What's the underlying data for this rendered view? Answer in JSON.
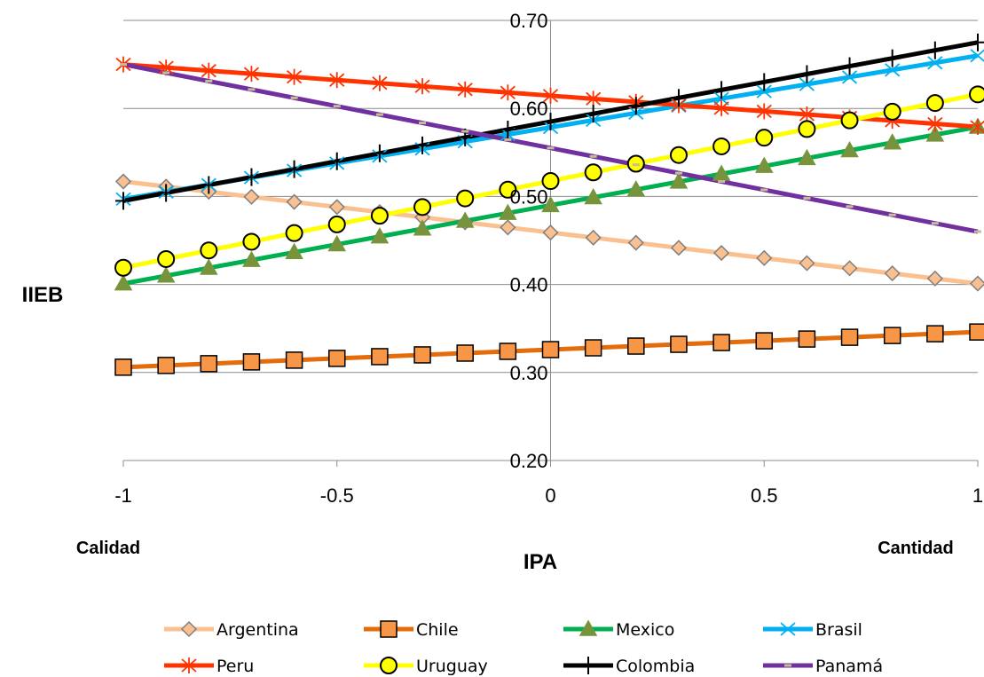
{
  "chart_data": {
    "type": "line",
    "xlabel": "IPA",
    "ylabel": "IIEB",
    "x_left_label": "Calidad",
    "x_right_label": "Cantidad",
    "x": [
      -1,
      -0.9,
      -0.8,
      -0.7,
      -0.6,
      -0.5,
      -0.4,
      -0.3,
      -0.2,
      -0.1,
      0,
      0.1,
      0.2,
      0.3,
      0.4,
      0.5,
      0.6,
      0.7,
      0.8,
      0.9,
      1
    ],
    "xlim": [
      -1,
      1
    ],
    "ylim": [
      0.2,
      0.7
    ],
    "x_ticks": [
      -1,
      -0.5,
      0,
      0.5,
      1
    ],
    "x_tick_labels": [
      "-1",
      "-0.5",
      "0",
      "0.5",
      "1"
    ],
    "y_ticks": [
      0.2,
      0.3,
      0.4,
      0.5,
      0.6,
      0.7
    ],
    "y_tick_labels": [
      "0.20",
      "0.30",
      "0.40",
      "0.50",
      "0.60",
      "0.70"
    ],
    "grid": "horizontal",
    "legend_position": "bottom",
    "series": [
      {
        "name": "Argentina",
        "start": 0.517,
        "end": 0.401,
        "color": "#FAC090",
        "marker": "diamond",
        "marker_fill": "#FAC090",
        "marker_stroke": "#7F7F7F"
      },
      {
        "name": "Chile",
        "start": 0.306,
        "end": 0.346,
        "color": "#E46C0A",
        "marker": "square",
        "marker_fill": "#F79646",
        "marker_stroke": "#000000"
      },
      {
        "name": "Mexico",
        "start": 0.401,
        "end": 0.579,
        "color": "#00B050",
        "marker": "triangle",
        "marker_fill": "#77933C",
        "marker_stroke": "#77933C"
      },
      {
        "name": "Brasil",
        "start": 0.497,
        "end": 0.66,
        "color": "#00B0F0",
        "marker": "x",
        "marker_fill": "none",
        "marker_stroke": "#00B0F0"
      },
      {
        "name": "Peru",
        "start": 0.65,
        "end": 0.579,
        "color": "#FF3300",
        "marker": "asterisk",
        "marker_fill": "none",
        "marker_stroke": "#FF3300"
      },
      {
        "name": "Uruguay",
        "start": 0.419,
        "end": 0.616,
        "color": "#FFFF00",
        "marker": "circle",
        "marker_fill": "#FFFF00",
        "marker_stroke": "#000000"
      },
      {
        "name": "Colombia",
        "start": 0.495,
        "end": 0.675,
        "color": "#000000",
        "marker": "plus",
        "marker_fill": "none",
        "marker_stroke": "#000000"
      },
      {
        "name": "Panamá",
        "start": 0.65,
        "end": 0.46,
        "color": "#7030A0",
        "marker": "dash",
        "marker_fill": "#C4BD97",
        "marker_stroke": "#C4BD97"
      }
    ]
  }
}
